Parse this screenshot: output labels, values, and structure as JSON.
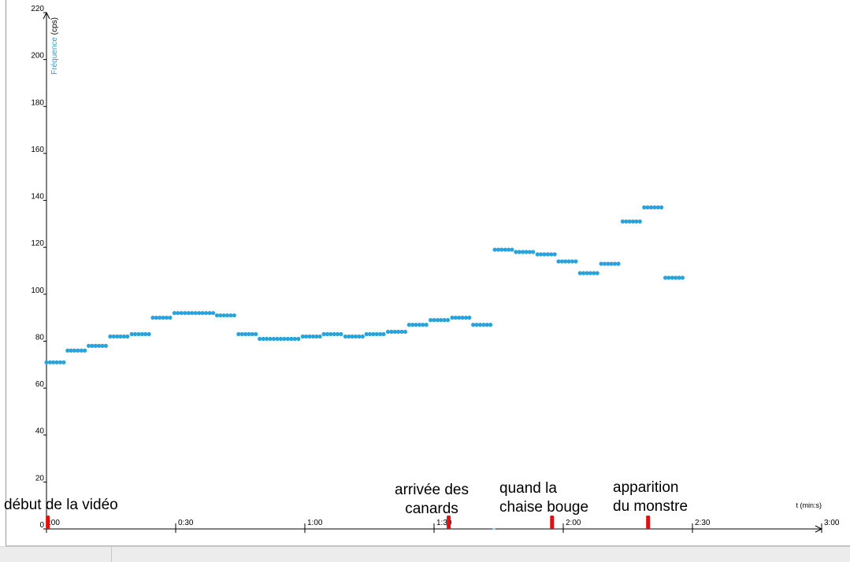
{
  "chart_data": {
    "type": "scatter",
    "xlabel": "t (min:s)",
    "ylabel": "Fréquence (cps)",
    "xlim": [
      0,
      180
    ],
    "ylim": [
      0,
      220
    ],
    "grid": false,
    "y_ticks": [
      0,
      20,
      40,
      60,
      80,
      100,
      120,
      140,
      160,
      180,
      200,
      220
    ],
    "y_tick_labels": [
      "0",
      "20",
      "40",
      "60",
      "80",
      "100",
      "120",
      "140",
      "160",
      "180",
      "200",
      "220"
    ],
    "x_ticks": [
      0,
      30,
      60,
      90,
      120,
      150,
      180
    ],
    "x_tick_labels": [
      ":00",
      "0:30",
      "1:00",
      "1:30",
      "2:00",
      "2:30",
      "3:00"
    ],
    "series": [
      {
        "color": "#29a3db",
        "segments": [
          {
            "x_start": 0.0,
            "x_end": 4.0,
            "y": 71
          },
          {
            "x_start": 4.9,
            "x_end": 8.9,
            "y": 76
          },
          {
            "x_start": 9.8,
            "x_end": 13.8,
            "y": 78
          },
          {
            "x_start": 14.8,
            "x_end": 18.8,
            "y": 82
          },
          {
            "x_start": 19.8,
            "x_end": 23.8,
            "y": 83
          },
          {
            "x_start": 24.7,
            "x_end": 28.7,
            "y": 90
          },
          {
            "x_start": 29.7,
            "x_end": 38.7,
            "y": 92
          },
          {
            "x_start": 39.6,
            "x_end": 43.6,
            "y": 91
          },
          {
            "x_start": 44.6,
            "x_end": 48.6,
            "y": 83
          },
          {
            "x_start": 49.5,
            "x_end": 58.5,
            "y": 81
          },
          {
            "x_start": 59.5,
            "x_end": 63.5,
            "y": 82
          },
          {
            "x_start": 64.4,
            "x_end": 68.4,
            "y": 83
          },
          {
            "x_start": 69.4,
            "x_end": 73.4,
            "y": 82
          },
          {
            "x_start": 74.3,
            "x_end": 78.3,
            "y": 83
          },
          {
            "x_start": 79.3,
            "x_end": 83.3,
            "y": 84
          },
          {
            "x_start": 84.2,
            "x_end": 88.2,
            "y": 87
          },
          {
            "x_start": 89.2,
            "x_end": 93.2,
            "y": 89
          },
          {
            "x_start": 94.2,
            "x_end": 98.2,
            "y": 90
          },
          {
            "x_start": 99.1,
            "x_end": 103.1,
            "y": 87
          },
          {
            "x_start": 104.1,
            "x_end": 108.1,
            "y": 119
          },
          {
            "x_start": 109.0,
            "x_end": 113.0,
            "y": 118
          },
          {
            "x_start": 114.0,
            "x_end": 118.0,
            "y": 117
          },
          {
            "x_start": 118.9,
            "x_end": 122.9,
            "y": 114
          },
          {
            "x_start": 123.9,
            "x_end": 127.9,
            "y": 109
          },
          {
            "x_start": 128.8,
            "x_end": 132.8,
            "y": 113
          },
          {
            "x_start": 133.8,
            "x_end": 137.8,
            "y": 131
          },
          {
            "x_start": 138.8,
            "x_end": 142.8,
            "y": 137
          },
          {
            "x_start": 143.7,
            "x_end": 147.7,
            "y": 107
          }
        ]
      }
    ],
    "annotations": [
      {
        "x": 0.3,
        "lines": [
          "début de la vidéo"
        ]
      },
      {
        "x": 93.4,
        "lines": [
          "arrivée des",
          "canards"
        ]
      },
      {
        "x": 117.4,
        "lines": [
          "quand la",
          "chaise bouge"
        ]
      },
      {
        "x": 139.7,
        "lines": [
          "apparition",
          "du monstre"
        ]
      }
    ],
    "marker_color": "#e01010"
  }
}
